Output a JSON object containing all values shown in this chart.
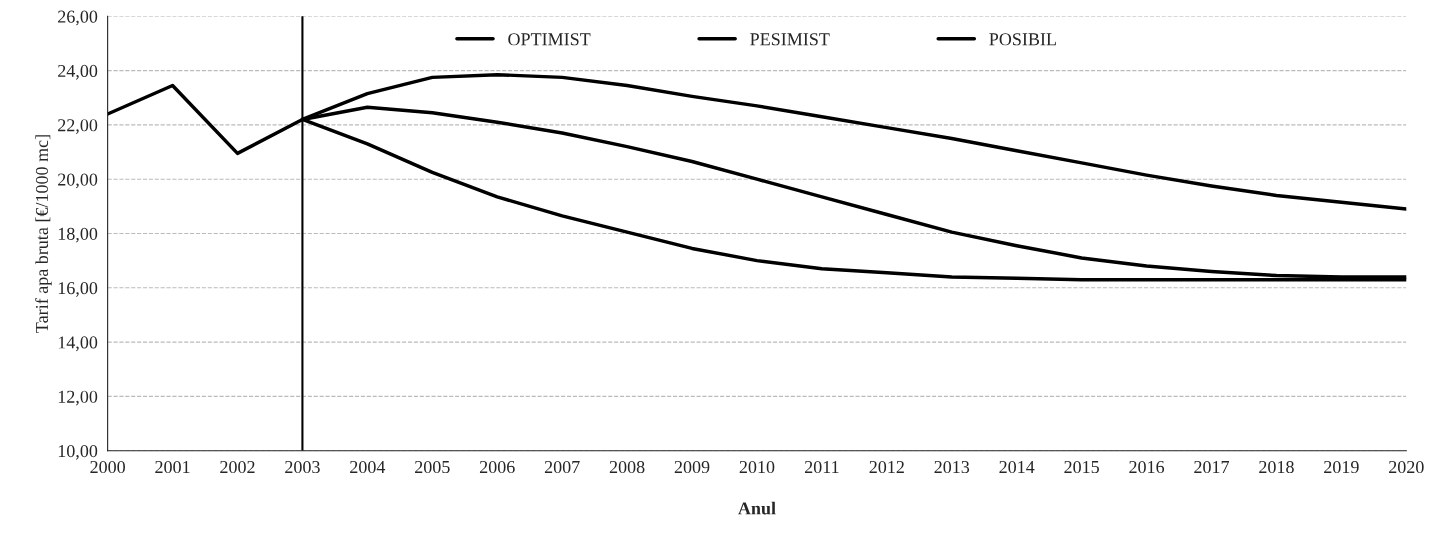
{
  "chart_data": {
    "type": "line",
    "xlabel": "Anul",
    "ylabel": "Tarif apa bruta [€/1000 mc]",
    "series": [
      {
        "name": "OPTIMIST",
        "color": "#000000",
        "x": [
          2003,
          2004,
          2005,
          2006,
          2007,
          2008,
          2009,
          2010,
          2011,
          2012,
          2013,
          2014,
          2015,
          2016,
          2017,
          2018,
          2019,
          2020
        ],
        "values": [
          22.2,
          21.3,
          20.25,
          19.35,
          18.65,
          18.05,
          17.45,
          17.0,
          16.7,
          16.55,
          16.4,
          16.35,
          16.3,
          16.3,
          16.3,
          16.3,
          16.3,
          16.3
        ]
      },
      {
        "name": "PESIMIST",
        "color": "#000000",
        "x": [
          2003,
          2004,
          2005,
          2006,
          2007,
          2008,
          2009,
          2010,
          2011,
          2012,
          2013,
          2014,
          2015,
          2016,
          2017,
          2018,
          2019,
          2020
        ],
        "values": [
          22.2,
          23.15,
          23.75,
          23.85,
          23.75,
          23.45,
          23.05,
          22.7,
          22.3,
          21.9,
          21.5,
          21.05,
          20.6,
          20.15,
          19.75,
          19.4,
          19.15,
          18.9
        ]
      },
      {
        "name": "POSIBIL",
        "color": "#000000",
        "x": [
          2000,
          2001,
          2002,
          2003,
          2004,
          2005,
          2006,
          2007,
          2008,
          2009,
          2010,
          2011,
          2012,
          2013,
          2014,
          2015,
          2016,
          2017,
          2018,
          2019,
          2020
        ],
        "values": [
          22.4,
          23.45,
          20.95,
          22.2,
          22.65,
          22.45,
          22.1,
          21.7,
          21.2,
          20.65,
          20.0,
          19.35,
          18.7,
          18.05,
          17.55,
          17.1,
          16.8,
          16.6,
          16.45,
          16.4,
          16.4
        ]
      }
    ],
    "xlim": [
      2000,
      2020
    ],
    "xticks": [
      2000,
      2001,
      2002,
      2003,
      2004,
      2005,
      2006,
      2007,
      2008,
      2009,
      2010,
      2011,
      2012,
      2013,
      2014,
      2015,
      2016,
      2017,
      2018,
      2019,
      2020
    ],
    "ylim": [
      10,
      26
    ],
    "yticks": [
      {
        "value": 10,
        "label": "10,00"
      },
      {
        "value": 12,
        "label": "12,00"
      },
      {
        "value": 14,
        "label": "14,00"
      },
      {
        "value": 16,
        "label": "16,00"
      },
      {
        "value": 18,
        "label": "18,00"
      },
      {
        "value": 20,
        "label": "20,00"
      },
      {
        "value": 22,
        "label": "22,00"
      },
      {
        "value": 24,
        "label": "24,00"
      },
      {
        "value": 26,
        "label": "26,00"
      }
    ],
    "ref_lines": [
      {
        "axis": "x",
        "value": 2003,
        "color": "#000000"
      }
    ],
    "grid": "y",
    "legend": "top",
    "marker": "none",
    "line_style": "solid"
  }
}
